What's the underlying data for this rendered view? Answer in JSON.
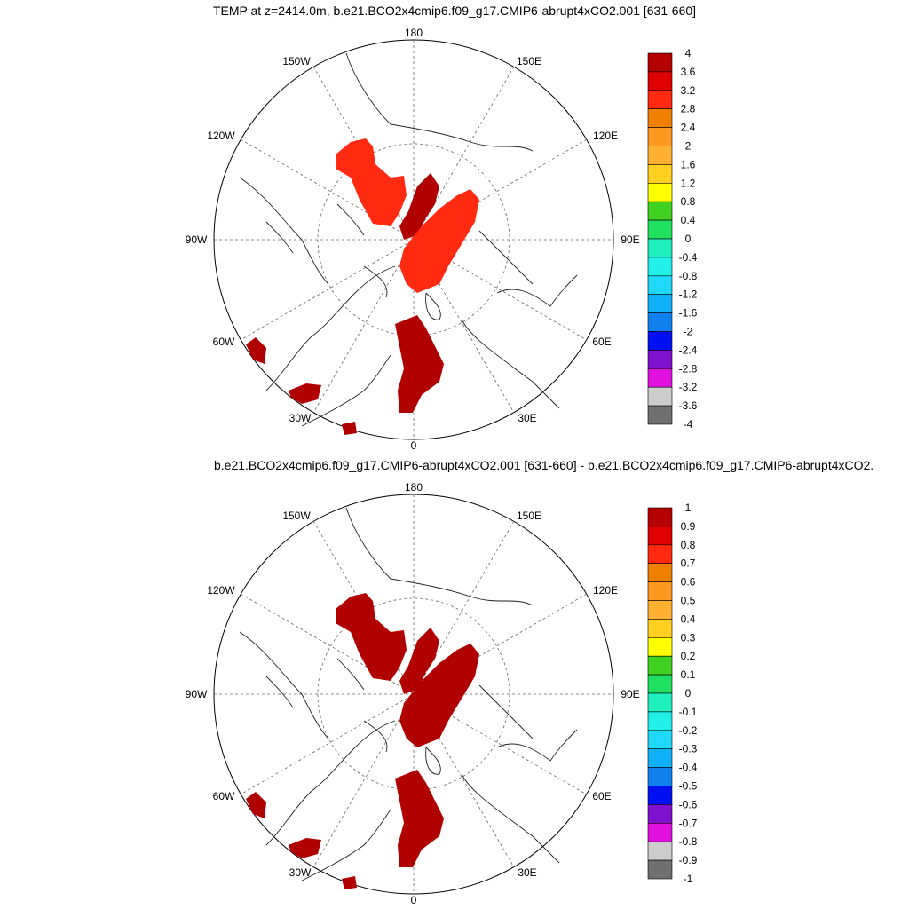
{
  "panels": [
    {
      "title": "TEMP at z=2414.0m, b.e21.BCO2x4cmip6.f09_g17.CMIP6-abrupt4xCO2.001 [631-660]",
      "plot_color": "#ff2a10",
      "longitude_labels": [
        "180",
        "150E",
        "120E",
        "90E",
        "60E",
        "30E",
        "0",
        "30W",
        "60W",
        "90W",
        "120W",
        "150W"
      ],
      "colorbar_labels": [
        "4",
        "3.6",
        "3.2",
        "2.8",
        "2.4",
        "2",
        "1.6",
        "1.2",
        "0.8",
        "0.4",
        "0",
        "-0.4",
        "-0.8",
        "-1.2",
        "-1.6",
        "-2",
        "-2.4",
        "-2.8",
        "-3.2",
        "-3.6",
        "-4"
      ]
    },
    {
      "title": "b.e21.BCO2x4cmip6.f09_g17.CMIP6-abrupt4xCO2.001 [631-660] - b.e21.BCO2x4cmip6.f09_g17.CMIP6-abrupt4xCO2.",
      "plot_color": "#b00000",
      "longitude_labels": [
        "180",
        "150E",
        "120E",
        "90E",
        "60E",
        "30E",
        "0",
        "30W",
        "60W",
        "90W",
        "120W",
        "150W"
      ],
      "colorbar_labels": [
        "1",
        "0.9",
        "0.8",
        "0.7",
        "0.6",
        "0.5",
        "0.4",
        "0.3",
        "0.2",
        "0.1",
        "0",
        "-0.1",
        "-0.2",
        "-0.3",
        "-0.4",
        "-0.5",
        "-0.6",
        "-0.7",
        "-0.8",
        "-0.9",
        "-1"
      ]
    }
  ],
  "colorbar_colors": [
    "#b40000",
    "#e00000",
    "#ff2a10",
    "#f08000",
    "#ff9a20",
    "#ffb030",
    "#ffd020",
    "#ffff00",
    "#40d020",
    "#20e060",
    "#20f0c0",
    "#20f0e8",
    "#20d8f8",
    "#10b0f8",
    "#1080f0",
    "#0010f0",
    "#8010d0",
    "#e010e0",
    "#cccccc",
    "#707070"
  ],
  "region_color_dark": "#b00000"
}
